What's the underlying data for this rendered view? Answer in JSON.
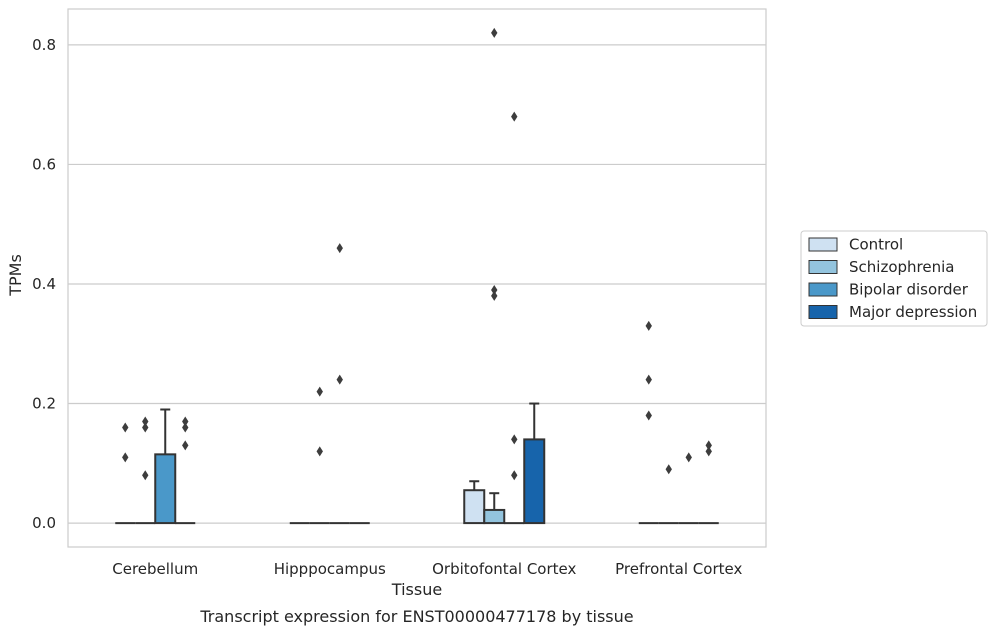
{
  "chart_data": {
    "type": "bar",
    "title": "Transcript expression for ENST00000477178 by tissue",
    "xlabel": "Tissue",
    "ylabel": "TPMs",
    "ylim": [
      -0.04,
      0.86
    ],
    "yticks": [
      0.0,
      0.2,
      0.4,
      0.6,
      0.8
    ],
    "ytick_labels": [
      "0.0",
      "0.2",
      "0.4",
      "0.6",
      "0.8"
    ],
    "grid": "horizontal",
    "legend_position": "right",
    "categories": [
      "Cerebellum",
      "Hipppocampus",
      "Orbitofontal Cortex",
      "Prefrontal Cortex"
    ],
    "series": [
      {
        "name": "Control",
        "color": "#cfe1f2",
        "values": [
          0.0,
          0.0,
          0.055,
          0.0
        ],
        "errors": [
          null,
          null,
          0.07,
          null
        ],
        "outliers": [
          [
            0.16,
            0.11
          ],
          [],
          [],
          [
            0.33,
            0.24,
            0.18
          ]
        ]
      },
      {
        "name": "Schizophrenia",
        "color": "#93c4de",
        "values": [
          0.0,
          0.0,
          0.022,
          0.0
        ],
        "errors": [
          null,
          null,
          0.05,
          null
        ],
        "outliers": [
          [
            0.17,
            0.16,
            0.08
          ],
          [
            0.22,
            0.12
          ],
          [
            0.82,
            0.39,
            0.38
          ],
          [
            0.09
          ]
        ]
      },
      {
        "name": "Bipolar disorder",
        "color": "#4a98c9",
        "values": [
          0.115,
          0.0,
          0.0,
          0.0
        ],
        "errors": [
          0.19,
          null,
          null,
          null
        ],
        "outliers": [
          [],
          [
            0.46,
            0.24
          ],
          [
            0.68,
            0.14,
            0.08
          ],
          [
            0.11
          ]
        ]
      },
      {
        "name": "Major depression",
        "color": "#1764ab",
        "values": [
          0.0,
          0.0,
          0.14,
          0.0
        ],
        "errors": [
          null,
          null,
          0.2,
          null
        ],
        "outliers": [
          [
            0.17,
            0.16,
            0.13
          ],
          [],
          [],
          [
            0.13,
            0.12
          ]
        ]
      }
    ]
  }
}
